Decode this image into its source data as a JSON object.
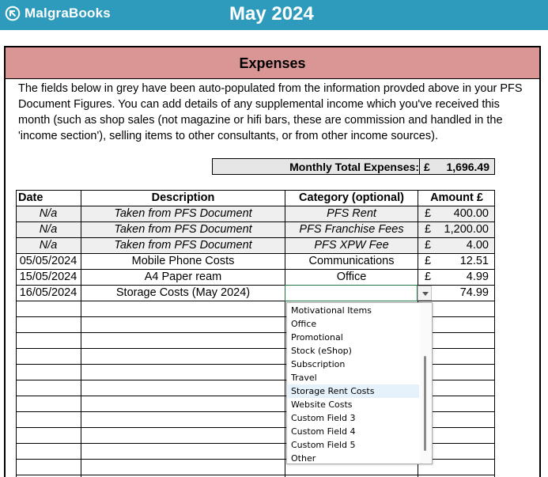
{
  "app": {
    "logo_text": "MalgraBooks",
    "month_title": "May 2024"
  },
  "section": {
    "title": "Expenses",
    "intro": "The fields below in grey have been auto-populated from the information provded above in your PFS Document Figures. You can add details of any supplemental income which you've received this month (such as shop sales (not magazine or hifi bars, these are commission and handled in the 'income section'), selling items to other consultants, or from other income sources)."
  },
  "totals": {
    "label": "Monthly Total Expenses:",
    "currency": "£",
    "value": "1,696.49"
  },
  "table": {
    "headers": {
      "date": "Date",
      "description": "Description",
      "category": "Category (optional)",
      "amount": "Amount £"
    },
    "rows": [
      {
        "date": "N/a",
        "description": "Taken from PFS Document",
        "category": "PFS Rent",
        "currency": "£",
        "amount": "400.00"
      },
      {
        "date": "N/a",
        "description": "Taken from PFS Document",
        "category": "PFS Franchise Fees",
        "currency": "£",
        "amount": "1,200.00"
      },
      {
        "date": "N/a",
        "description": "Taken from PFS Document",
        "category": "PFS XPW Fee",
        "currency": "£",
        "amount": "4.00"
      },
      {
        "date": "05/05/2024",
        "description": "Mobile Phone Costs",
        "category": "Communications",
        "currency": "£",
        "amount": "12.51"
      },
      {
        "date": "15/05/2024",
        "description": "A4 Paper ream",
        "category": "Office",
        "currency": "£",
        "amount": "4.99"
      },
      {
        "date": "16/05/2024",
        "description": "Storage Costs (May 2024)",
        "category": "",
        "currency": "",
        "amount": "74.99"
      }
    ]
  },
  "dropdown": {
    "items": [
      "Motivational Items",
      "Office",
      "Promotional",
      "Stock (eShop)",
      "Subscription",
      "Travel",
      "Storage Rent Costs",
      "Website Costs",
      "Custom Field 3",
      "Custom Field 4",
      "Custom Field 5",
      "Other"
    ],
    "highlighted": "Storage Rent Costs"
  }
}
